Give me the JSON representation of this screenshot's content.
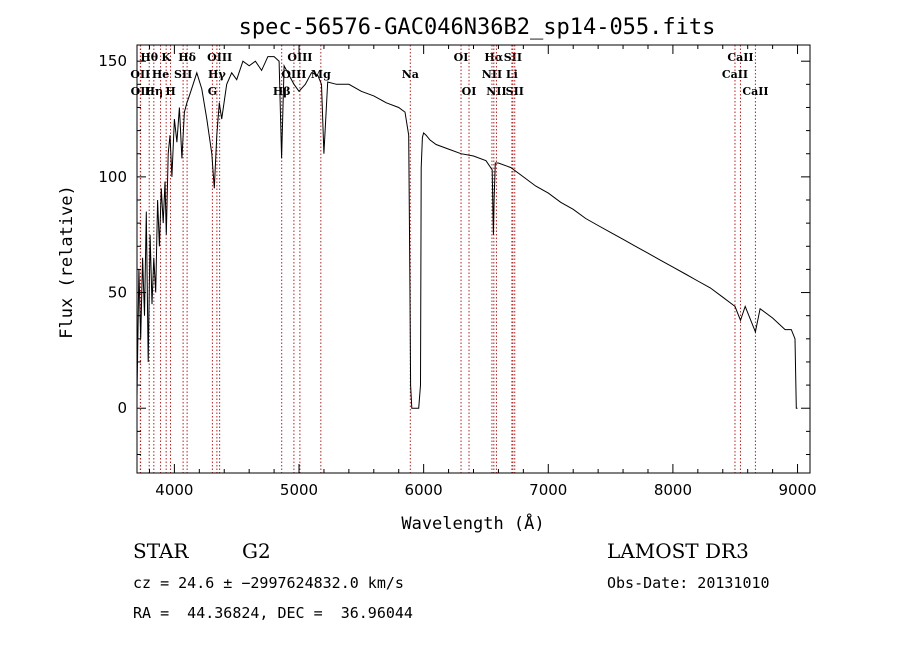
{
  "chart_data": {
    "type": "line",
    "title": "spec-56576-GAC046N36B2_sp14-055.fits",
    "xlabel": "Wavelength (Å)",
    "ylabel": "Flux (relative)",
    "xlim": [
      3700,
      9100
    ],
    "ylim": [
      -28,
      157
    ],
    "xticks": [
      4000,
      5000,
      6000,
      7000,
      8000,
      9000
    ],
    "yticks": [
      0,
      50,
      100,
      150
    ],
    "series": [
      {
        "name": "spectrum",
        "x": [
          3700,
          3715,
          3730,
          3745,
          3760,
          3775,
          3790,
          3805,
          3820,
          3835,
          3850,
          3865,
          3880,
          3895,
          3910,
          3925,
          3935,
          3950,
          3965,
          3980,
          4000,
          4020,
          4040,
          4060,
          4080,
          4100,
          4120,
          4150,
          4180,
          4220,
          4260,
          4300,
          4320,
          4340,
          4360,
          4380,
          4420,
          4460,
          4500,
          4550,
          4600,
          4650,
          4700,
          4750,
          4800,
          4840,
          4860,
          4880,
          4920,
          4960,
          5000,
          5050,
          5100,
          5150,
          5180,
          5200,
          5230,
          5300,
          5400,
          5500,
          5600,
          5700,
          5800,
          5850,
          5880,
          5890,
          5895,
          5905,
          5920,
          5950,
          5960,
          5975,
          5980,
          5990,
          6000,
          6020,
          6050,
          6100,
          6200,
          6300,
          6400,
          6500,
          6550,
          6560,
          6565,
          6575,
          6600,
          6700,
          6800,
          6900,
          7000,
          7100,
          7200,
          7300,
          7400,
          7500,
          7600,
          7700,
          7800,
          7900,
          8000,
          8100,
          8200,
          8300,
          8400,
          8498,
          8542,
          8580,
          8662,
          8700,
          8800,
          8900,
          8950,
          8980,
          8990,
          9000
        ],
        "y": [
          5,
          60,
          30,
          65,
          40,
          85,
          20,
          75,
          45,
          65,
          50,
          90,
          70,
          95,
          80,
          98,
          75,
          110,
          118,
          100,
          125,
          115,
          130,
          108,
          128,
          132,
          135,
          140,
          145,
          138,
          125,
          110,
          95,
          118,
          132,
          125,
          140,
          145,
          142,
          150,
          148,
          150,
          146,
          152,
          152,
          150,
          108,
          148,
          144,
          140,
          137,
          140,
          145,
          144,
          140,
          110,
          141,
          140,
          140,
          137,
          135,
          132,
          130,
          128,
          118,
          55,
          10,
          0,
          0,
          0,
          0,
          10,
          104,
          117,
          119,
          118,
          116,
          114,
          112,
          110,
          109,
          107,
          103,
          75,
          90,
          106,
          106,
          104,
          100,
          96,
          93,
          89,
          86,
          82,
          79,
          76,
          73,
          70,
          67,
          64,
          61,
          58,
          55,
          52,
          48,
          44,
          38,
          44,
          33,
          43,
          39,
          34,
          34,
          30,
          0,
          0
        ]
      }
    ],
    "lines": [
      {
        "label": "Hθ",
        "x": 3798,
        "row": 0
      },
      {
        "label": "OII",
        "x": 3727,
        "row": 1
      },
      {
        "label": "OII",
        "x": 3729,
        "row": 2
      },
      {
        "label": "Hη",
        "x": 3835,
        "row": 2
      },
      {
        "label": "He",
        "x": 3889,
        "row": 1
      },
      {
        "label": "K",
        "x": 3934,
        "row": 0
      },
      {
        "label": "SII",
        "x": 4070,
        "row": 1
      },
      {
        "label": "H",
        "x": 3969,
        "row": 2
      },
      {
        "label": "Hδ",
        "x": 4102,
        "row": 0
      },
      {
        "label": "OIII",
        "x": 4363,
        "row": 0
      },
      {
        "label": "Hγ",
        "x": 4341,
        "row": 1
      },
      {
        "label": "G",
        "x": 4305,
        "row": 2
      },
      {
        "label": "OIII",
        "x": 5007,
        "row": 0
      },
      {
        "label": "OIII",
        "x": 4959,
        "row": 1
      },
      {
        "label": "Mg",
        "x": 5175,
        "row": 1
      },
      {
        "label": "Hβ",
        "x": 4861,
        "row": 2
      },
      {
        "label": "Na",
        "x": 5893,
        "row": 1
      },
      {
        "label": "OI",
        "x": 6300,
        "row": 0
      },
      {
        "label": "OI",
        "x": 6364,
        "row": 2
      },
      {
        "label": "Hα",
        "x": 6563,
        "row": 0
      },
      {
        "label": "SII",
        "x": 6716,
        "row": 0
      },
      {
        "label": "NII",
        "x": 6548,
        "row": 1
      },
      {
        "label": "Li",
        "x": 6708,
        "row": 1
      },
      {
        "label": "NII",
        "x": 6584,
        "row": 2
      },
      {
        "label": "SII",
        "x": 6731,
        "row": 2
      },
      {
        "label": "CaII",
        "x": 8542,
        "row": 0
      },
      {
        "label": "CaII",
        "x": 8498,
        "row": 1
      },
      {
        "label": "CaII",
        "x": 8662,
        "row": 2
      }
    ],
    "line_color": "#b22222",
    "spectrum_color": "#000000"
  },
  "info": {
    "obj_class": "STAR",
    "subclass": "G2",
    "survey": "LAMOST DR3",
    "cz": "cz = 24.6 ± −2997624832.0 km/s",
    "obs_date": "Obs-Date: 20131010",
    "radec": "RA =  44.36824, DEC =  36.96044"
  }
}
